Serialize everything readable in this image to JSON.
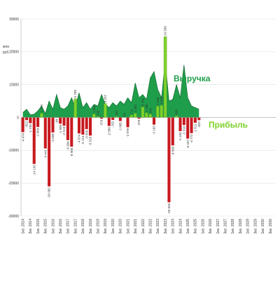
{
  "chart_data": {
    "type": "bar_area",
    "y_label": [
      "млн",
      "руб."
    ],
    "categories": [
      "1кв. 2014",
      null,
      "3кв. 2014",
      null,
      "1кв. 2015",
      null,
      "3кв. 2015",
      null,
      "1кв. 2016",
      null,
      "3кв. 2016",
      null,
      "1кв. 2017",
      null,
      "3кв. 2017",
      null,
      "1кв. 2018",
      null,
      "3кв. 2018",
      null,
      "1кв. 2019",
      null,
      "3кв. 2019",
      null,
      "1кв. 2020",
      null,
      "3кв. 2020",
      null,
      "1кв. 2021",
      null,
      "3кв. 2021",
      null,
      "1кв. 2022",
      null,
      "3кв. 2022",
      null,
      "1кв. 2023",
      null,
      "3кв. 2023",
      null,
      "1кв. 2024",
      null,
      "3кв. 2024",
      null,
      "1кв. 2025",
      null,
      "3кв. 2025",
      null,
      "1кв. 2026",
      null,
      "3кв. 2026",
      null,
      "1кв. 2027",
      null,
      "3кв. 2027",
      null,
      "1кв. 2028",
      null,
      "3кв. 2028",
      null,
      "1кв. 2029",
      null,
      "3кв. 2029",
      null,
      "1кв. 2030",
      null,
      "3кв. 2030",
      null
    ],
    "series": [
      {
        "name": "Выручка",
        "kind": "area",
        "color": "#1e9e4a",
        "outline": "#166b33",
        "values": [
          1500,
          2500,
          800,
          1000,
          2000,
          3500,
          1200,
          5000,
          2500,
          7000,
          3000,
          2500,
          3500,
          6000,
          3000,
          7500,
          3000,
          4500,
          2500,
          4000,
          3500,
          7000,
          4000,
          3000,
          4500,
          3500,
          5000,
          4000,
          6000,
          4500,
          10500,
          6000,
          7000,
          5500,
          12000,
          14000,
          8500,
          6000,
          17000,
          5000,
          5500,
          10000,
          6000,
          16000,
          6000,
          3500,
          3000,
          2500,
          null,
          null,
          null,
          null,
          null,
          null,
          null,
          null,
          null,
          null,
          null,
          null,
          null,
          null,
          null,
          null,
          null,
          null,
          null,
          null
        ]
      },
      {
        "name": "Прибыль",
        "kind": "bar",
        "color": "#7fd12b",
        "negative_color": "#c8191e",
        "values": [
          -4474,
          -822,
          -1736,
          -14139,
          -2904,
          1272,
          -9441,
          -20982,
          -4568,
          -84,
          -1909,
          -2510,
          -6904,
          -8905,
          5700,
          -4874,
          -5214,
          -3550,
          -5510,
          1049,
          249,
          -379,
          4227,
          -2580,
          -762,
          263,
          -1085,
          51,
          -2978,
          711,
          1203,
          -375,
          3166,
          1390,
          992,
          -2183,
          3440,
          3658,
          24589,
          -25826,
          -8505,
          490,
          -4155,
          -2316,
          -6437,
          -4772,
          -1611,
          -837,
          null,
          null,
          null,
          null,
          null,
          null,
          null,
          null,
          null,
          null,
          null,
          null,
          null,
          null,
          null,
          null,
          null,
          null,
          null,
          null
        ],
        "value_labels": [
          "-4 474",
          "-822",
          "-1 736",
          "-14 139",
          "-2 904",
          "1 272",
          "-9 441",
          "-20 982",
          "-4 568",
          "-84",
          "-1 909",
          "-2 510",
          "-6 904",
          "-8 905",
          "5 700",
          "-4 874",
          "-5 214",
          "-3 550",
          "-5 510",
          "1 049",
          "249",
          "-379",
          "4 227",
          "-2 580",
          "-762",
          "263",
          "-1 085",
          "51",
          "-2 978",
          "711",
          "1 203",
          "-375",
          "3 166",
          "1 390",
          "992",
          "-2 183",
          "3 440",
          "3 658",
          "24 589",
          "-25 826",
          "-8 505",
          "490",
          "-4 155",
          "-2 316",
          "-6 437",
          "-4 772",
          "-1 611",
          "-837",
          null,
          null,
          null,
          null,
          null,
          null,
          null,
          null,
          null,
          null,
          null,
          null,
          null,
          null,
          null,
          null,
          null,
          null,
          null,
          null
        ]
      }
    ],
    "ylim": [
      -30000,
      30000
    ],
    "yticks": [
      -30000,
      -20000,
      -10000,
      0,
      10000,
      20000,
      30000
    ],
    "grid": true
  }
}
